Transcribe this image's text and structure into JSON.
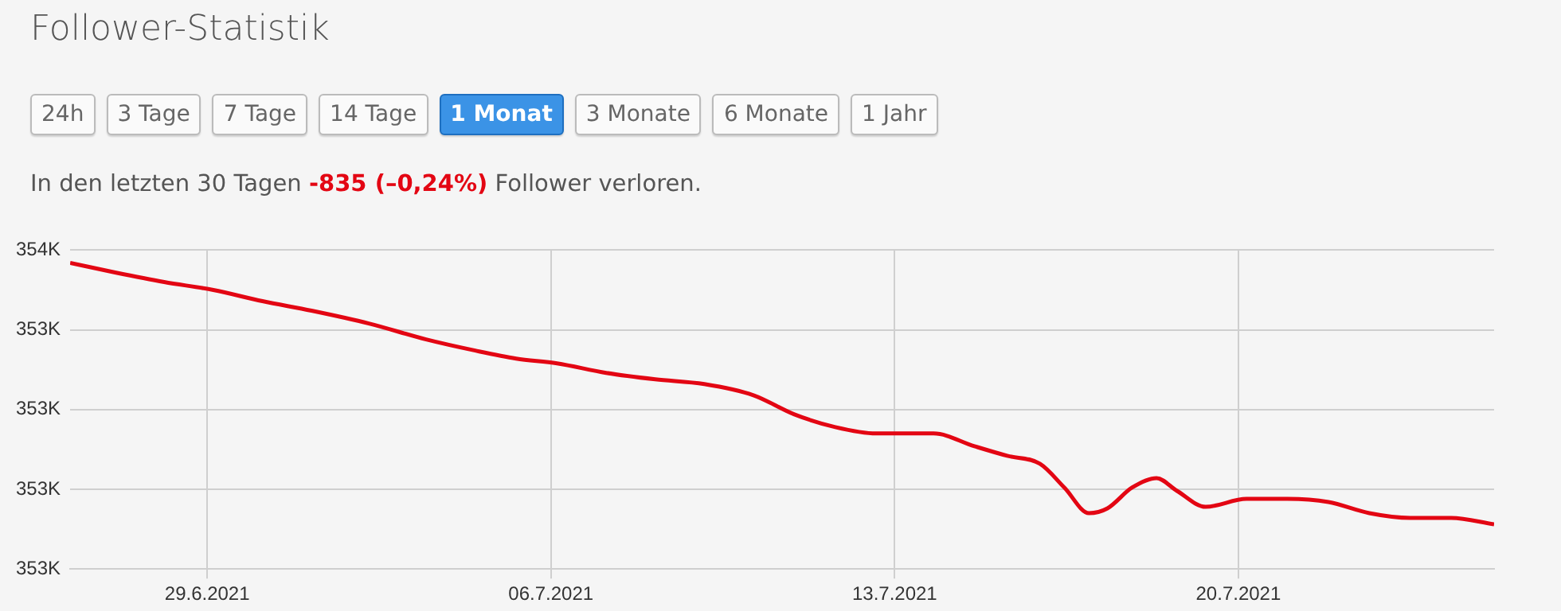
{
  "chart_data": {
    "type": "line",
    "title": "Follower-Statistik",
    "subtitle": "In den letzten 30 Tagen -835 (–0,24%) Follower verloren.",
    "annotations": [
      "24h",
      "3 Tage",
      "7 Tage",
      "14 Tage",
      "1 Monat",
      "3 Monate",
      "6 Monate",
      "1 Jahr"
    ],
    "x": [
      "2021-06-26T05:00",
      "2021-06-27T03:00",
      "2021-06-28T03:00",
      "2021-06-29T03:00",
      "2021-06-30T03:00",
      "2021-07-01T03:00",
      "2021-07-02T07:00",
      "2021-07-03T11:00",
      "2021-07-04T11:00",
      "2021-07-05T07:00",
      "2021-07-06T03:00",
      "2021-07-07T03:00",
      "2021-07-08T03:00",
      "2021-07-09T03:00",
      "2021-07-10T03:00",
      "2021-07-10T23:00",
      "2021-07-11T19:00",
      "2021-07-12T15:00",
      "2021-07-13T19:00",
      "2021-07-14T15:00",
      "2021-07-15T07:00",
      "2021-07-15T23:00",
      "2021-07-16T11:00",
      "2021-07-16T23:00",
      "2021-07-17T08:00",
      "2021-07-17T20:00",
      "2021-07-18T08:00",
      "2021-07-18T18:00",
      "2021-07-19T08:00",
      "2021-07-20T04:00",
      "2021-07-21T00:00",
      "2021-07-21T20:00",
      "2021-07-22T16:00",
      "2021-07-23T12:00",
      "2021-07-24T08:00",
      "2021-07-25T05:00"
    ],
    "series": [
      {
        "color": "#e30613",
        "values": [
          353660,
          353630,
          353600,
          353575,
          353540,
          353510,
          353470,
          353420,
          353385,
          353360,
          353345,
          353315,
          353295,
          353280,
          353245,
          353185,
          353145,
          353125,
          353125,
          353085,
          353055,
          353030,
          352955,
          352875,
          352890,
          352955,
          352985,
          352945,
          352895,
          352920,
          352920,
          352910,
          352875,
          352860,
          352860,
          352840
        ]
      }
    ],
    "xlim": [
      "2021-06-26T05:00",
      "2021-07-25T05:00"
    ],
    "xticks": [
      {
        "value": "2021-06-29",
        "label": "29.6.2021"
      },
      {
        "value": "2021-07-06",
        "label": "06.7.2021"
      },
      {
        "value": "2021-07-13",
        "label": "13.7.2021"
      },
      {
        "value": "2021-07-20",
        "label": "20.7.2021"
      }
    ],
    "ylim": [
      352700,
      353700
    ],
    "yticks": [
      {
        "value": 352700,
        "label": "353K"
      },
      {
        "value": 352950,
        "label": "353K"
      },
      {
        "value": 353200,
        "label": "353K"
      },
      {
        "value": 353450,
        "label": "353K"
      },
      {
        "value": 353700,
        "label": "354K"
      }
    ],
    "grid": true,
    "legend": false,
    "marker": "none",
    "line_style": "solid"
  }
}
